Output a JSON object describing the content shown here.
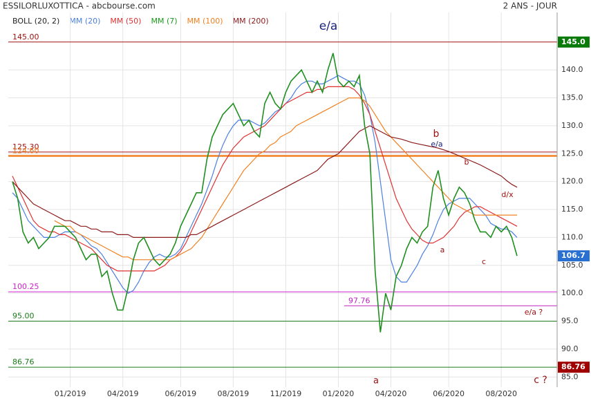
{
  "chart_data": {
    "type": "line",
    "title": "ESSILORLUXOTTICA - abcbourse.com",
    "subtitle": "2 ANS - JOUR",
    "grid": true,
    "ylim": [
      83.8,
      150.3
    ],
    "yticks": [
      {
        "value": 85,
        "label": "85.0"
      },
      {
        "value": 90,
        "label": "90.0"
      },
      {
        "value": 95,
        "label": "95.0"
      },
      {
        "value": 100,
        "label": "100.0"
      },
      {
        "value": 105,
        "label": "105.0"
      },
      {
        "value": 110,
        "label": "110.0"
      },
      {
        "value": 115,
        "label": "115.0"
      },
      {
        "value": 120,
        "label": "120.0"
      },
      {
        "value": 125,
        "label": "125.0"
      },
      {
        "value": 130,
        "label": "130.0"
      },
      {
        "value": 135,
        "label": "135.0"
      },
      {
        "value": 140,
        "label": "140.0"
      }
    ],
    "categories": [
      null,
      null,
      null,
      null,
      null,
      null,
      null,
      null,
      null,
      null,
      null,
      "01/2019",
      null,
      null,
      null,
      null,
      null,
      null,
      null,
      null,
      null,
      "04/2019",
      null,
      null,
      null,
      null,
      null,
      null,
      null,
      null,
      null,
      null,
      "06/2019",
      null,
      null,
      null,
      null,
      null,
      null,
      null,
      null,
      null,
      "08/2019",
      null,
      null,
      null,
      null,
      null,
      null,
      null,
      null,
      null,
      "11/2019",
      null,
      null,
      null,
      null,
      null,
      null,
      null,
      null,
      null,
      "01/2020",
      null,
      null,
      null,
      null,
      null,
      null,
      null,
      null,
      null,
      "04/2020",
      null,
      null,
      null,
      null,
      null,
      null,
      null,
      null,
      null,
      null,
      "06/2020",
      null,
      null,
      null,
      null,
      null,
      null,
      null,
      null,
      null,
      "08/2020",
      null,
      null,
      null
    ],
    "color": "#1f8f1f",
    "values": [
      120,
      117,
      111,
      109,
      110,
      108,
      109,
      110,
      112,
      112,
      112,
      111,
      110,
      108,
      106,
      107,
      107,
      103,
      104,
      100,
      97,
      97,
      101,
      106,
      109,
      110,
      108,
      106,
      105,
      106,
      107,
      109,
      112,
      114,
      116,
      118,
      118,
      124,
      128,
      130,
      132,
      133,
      134,
      132,
      130,
      131,
      129,
      128,
      134,
      136,
      134,
      133,
      136,
      138,
      139,
      140,
      138,
      136,
      138,
      136,
      140,
      143,
      138,
      137,
      138,
      137,
      139,
      130,
      125,
      104,
      93,
      100,
      97,
      103,
      105,
      108,
      110,
      109,
      111,
      112,
      119,
      122,
      117,
      114,
      117,
      119,
      118,
      116,
      113,
      111,
      111,
      110,
      112,
      111,
      112,
      110,
      106.7
    ],
    "series": [
      {
        "name": "BOLL (20, 2)",
        "color": "#222222"
      },
      {
        "name": "MM (20)",
        "color": "#4a7fe0",
        "values": [
          118,
          117,
          115,
          113,
          112,
          111,
          110,
          110,
          110,
          110.5,
          111,
          111,
          111,
          110.5,
          109.5,
          108.5,
          108,
          107,
          105.5,
          104,
          102.5,
          101,
          100,
          100.5,
          102,
          104,
          105.5,
          106.5,
          107,
          106.5,
          106.5,
          107,
          108,
          110,
          112,
          114,
          116,
          118.5,
          121,
          124,
          126.5,
          128.5,
          130,
          131,
          131,
          131,
          130.5,
          130,
          130.5,
          131.5,
          132.5,
          133,
          134,
          135,
          136.5,
          137.5,
          138,
          138,
          137.5,
          137.5,
          138,
          138.5,
          139,
          138.5,
          138,
          138,
          137.5,
          135.5,
          132,
          127,
          120,
          113,
          106,
          103,
          102,
          102,
          103.5,
          105,
          107,
          108.5,
          110.5,
          113,
          115,
          116,
          116.5,
          117,
          117,
          117,
          116,
          115,
          114,
          112.5,
          112,
          111.5,
          111.5,
          111,
          110
        ]
      },
      {
        "name": "MM (50)",
        "color": "#e03030",
        "values": [
          121,
          119,
          117,
          115,
          113,
          112,
          111.5,
          111,
          111,
          110.5,
          110.5,
          110,
          109.5,
          109,
          108.5,
          108,
          107,
          106,
          105,
          104.5,
          104,
          104,
          104,
          104,
          104,
          104,
          104,
          104,
          104.5,
          105,
          106,
          106.5,
          107.5,
          109,
          111,
          113,
          115,
          117,
          119,
          121,
          123,
          124.5,
          126,
          127,
          128,
          128.5,
          129,
          129.5,
          130,
          131,
          132,
          133,
          134,
          134.5,
          135,
          135.5,
          136,
          136,
          136.5,
          136.5,
          137,
          137,
          137,
          137,
          137,
          136.5,
          135.5,
          134,
          132,
          129,
          126,
          123,
          120,
          117,
          115,
          113,
          111.5,
          110.5,
          109.5,
          109,
          109,
          109.5,
          110,
          111,
          112,
          113.5,
          114.5,
          115,
          115.5,
          115.5,
          115,
          114.5,
          114,
          113.5,
          113,
          112.5,
          112
        ]
      },
      {
        "name": "MM (7)",
        "color": "#1a9a1a"
      },
      {
        "name": "MM (100)",
        "color": "#f08020",
        "values": [
          null,
          null,
          null,
          null,
          null,
          null,
          null,
          null,
          113,
          112.5,
          112,
          112,
          111,
          110.5,
          110,
          109.5,
          109,
          108.5,
          108,
          107.5,
          107,
          106.5,
          106.5,
          106,
          106,
          106,
          106,
          106,
          106,
          106,
          106,
          106.5,
          107,
          107.5,
          108,
          109,
          110,
          111.5,
          113,
          114.5,
          116,
          117.5,
          119,
          120.5,
          122,
          123,
          124,
          125,
          125.5,
          126.5,
          127,
          128,
          128.5,
          129,
          130,
          130.5,
          131,
          131.5,
          132,
          132.5,
          133,
          133.5,
          134,
          134.5,
          135,
          135,
          135,
          134.5,
          133.5,
          132,
          130.5,
          129,
          128,
          127,
          126,
          125,
          124,
          123,
          122,
          121,
          120,
          119,
          118,
          117,
          116,
          115.5,
          115,
          114.5,
          114,
          114,
          114,
          114,
          114,
          114,
          114,
          114,
          114
        ]
      },
      {
        "name": "MM (200)",
        "color": "#8b1a1a",
        "values": [
          120,
          119,
          118,
          117,
          116,
          115.5,
          115,
          114.5,
          114,
          113.5,
          113,
          113,
          112.5,
          112,
          112,
          111.5,
          111.5,
          111,
          111,
          111,
          110.5,
          110.5,
          110.5,
          110,
          110,
          110,
          110,
          110,
          110,
          110,
          110,
          110,
          110,
          110,
          110.5,
          110.5,
          111,
          111.5,
          112,
          112.5,
          113,
          113.5,
          114,
          114.5,
          115,
          115.5,
          116,
          116.5,
          117,
          117.5,
          118,
          118.5,
          119,
          119.5,
          120,
          120.5,
          121,
          121.5,
          122,
          123,
          124,
          124.5,
          125,
          126,
          127,
          128,
          129,
          129.5,
          130,
          129.5,
          129,
          128.5,
          128,
          127.8,
          127.6,
          127.3,
          127,
          126.8,
          126.6,
          126.4,
          126.2,
          126,
          125.7,
          125.4,
          125,
          124.6,
          124.2,
          123.8,
          123.4,
          123,
          122.5,
          122,
          121.5,
          121,
          120.2,
          119.5,
          119
        ]
      }
    ],
    "levels": [
      {
        "value": 145,
        "label": "145.00",
        "color": "#a01010"
      },
      {
        "value": 125.3,
        "label": "125.30",
        "color": "#a01010"
      },
      {
        "value": 124.6,
        "label": "124.60",
        "color": "#f08020"
      },
      {
        "value": 100.25,
        "label": "100.25",
        "color": "#d020d0"
      },
      {
        "value": 97.76,
        "label": "97.76",
        "color": "#c020c0"
      },
      {
        "value": 95,
        "label": "95.00",
        "color": "#1a7a1a"
      },
      {
        "value": 86.76,
        "label": "86.76",
        "color": "#1a7a1a"
      }
    ],
    "price_tags": [
      {
        "value": 145,
        "label": "145.0",
        "color": "#0a7a0a"
      },
      {
        "value": 106.7,
        "label": "106.7",
        "color": "#2a70d0"
      },
      {
        "value": 86.76,
        "label": "86.76",
        "color": "#a00000"
      }
    ],
    "annotations": [
      "e/a",
      "b",
      "e/a",
      "b",
      "d/x",
      "a",
      "c",
      "a",
      "e/a ?",
      "c ?"
    ]
  }
}
